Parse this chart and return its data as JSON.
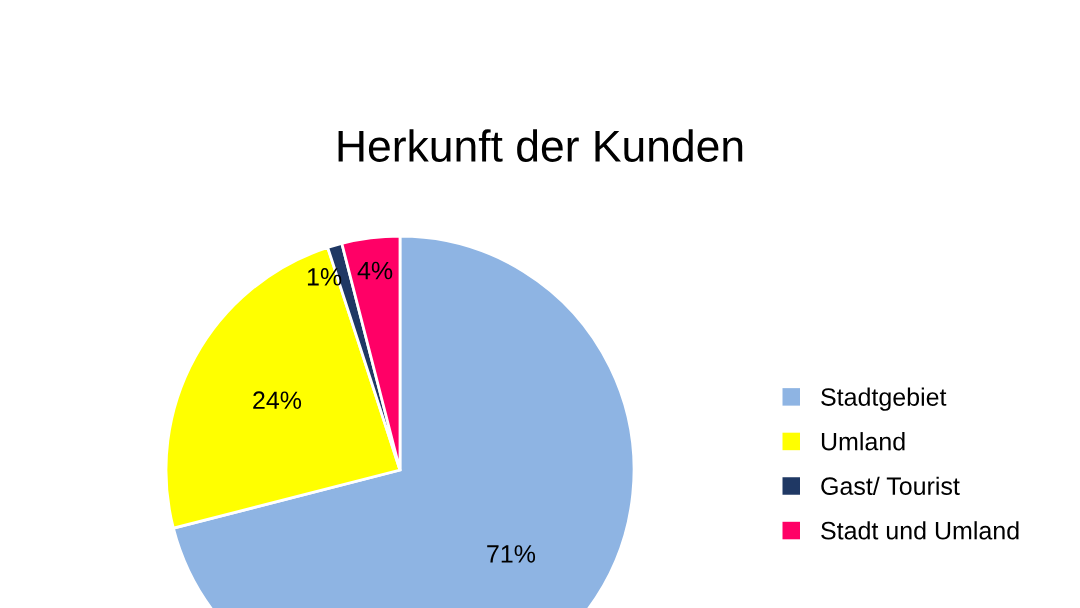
{
  "chart_data": {
    "type": "pie",
    "title": "Herkunft der Kunden",
    "categories": [
      "Stadtgebiet",
      "Umland",
      "Gast/ Tourist",
      "Stadt und Umland"
    ],
    "values": [
      71,
      24,
      1,
      4
    ],
    "colors": [
      "#8eb4e3",
      "#ffff00",
      "#1f3864",
      "#ff0066"
    ],
    "value_labels": [
      "71%",
      "24%",
      "1%",
      "4%"
    ],
    "legend": "right"
  }
}
